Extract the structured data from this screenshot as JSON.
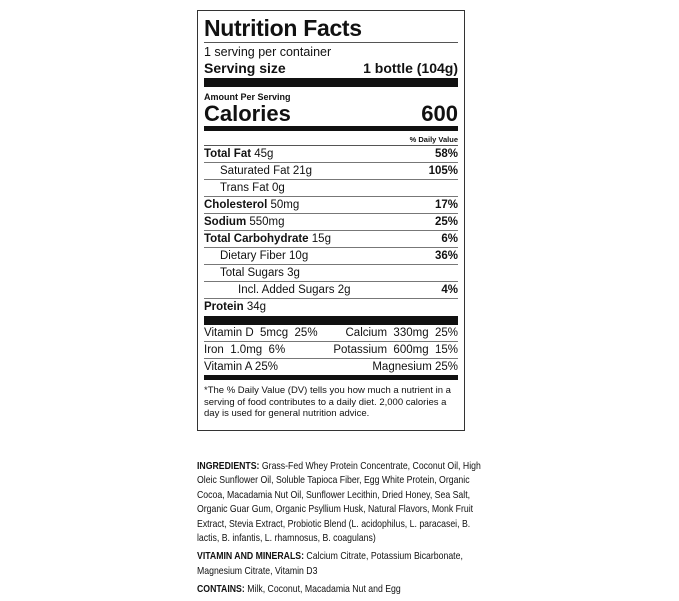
{
  "label": {
    "title": "Nutrition Facts",
    "servings": "1 serving per container",
    "serving_size_label": "Serving size",
    "serving_size_value": "1 bottle (104g)",
    "amount_per_serving": "Amount Per Serving",
    "calories_label": "Calories",
    "calories_value": "600",
    "daily_value_header": "% Daily Value",
    "nutrients": [
      {
        "name": "Total Fat",
        "amount": "45g",
        "dv": "58%",
        "bold": true,
        "indent": 0
      },
      {
        "name": "Saturated Fat",
        "amount": "21g",
        "dv": "105%",
        "bold": false,
        "indent": 1
      },
      {
        "name": "Trans Fat",
        "amount": "0g",
        "dv": "",
        "bold": false,
        "indent": 1
      },
      {
        "name": "Cholesterol",
        "amount": "50mg",
        "dv": "17%",
        "bold": true,
        "indent": 0
      },
      {
        "name": "Sodium",
        "amount": "550mg",
        "dv": "25%",
        "bold": true,
        "indent": 0
      },
      {
        "name": "Total Carbohydrate",
        "amount": "15g",
        "dv": "6%",
        "bold": true,
        "indent": 0
      },
      {
        "name": "Dietary Fiber",
        "amount": "10g",
        "dv": "36%",
        "bold": false,
        "indent": 1
      },
      {
        "name": "Total Sugars",
        "amount": "3g",
        "dv": "",
        "bold": false,
        "indent": 1
      },
      {
        "name": "Incl. Added Sugars",
        "amount": "2g",
        "dv": "4%",
        "bold": false,
        "indent": 2
      },
      {
        "name": "Protein",
        "amount": "34g",
        "dv": "",
        "bold": true,
        "indent": 0
      }
    ],
    "vitamins": [
      {
        "left": "Vitamin D  5mcg  25%",
        "right": "Calcium  330mg  25%"
      },
      {
        "left": "Iron  1.0mg  6%",
        "right": "Potassium  600mg  15%"
      },
      {
        "left": "Vitamin A 25%",
        "right": "Magnesium 25%"
      }
    ],
    "footnote": "*The % Daily Value (DV) tells you how much a nutrient in a serving of food contributes to a daily diet. 2,000 calories a day is used for general nutrition advice."
  },
  "ingredients": {
    "label": "INGREDIENTS:",
    "lines": [
      " Grass-Fed Whey Protein Concentrate, Coconut Oil, High",
      "Oleic Sunflower Oil, Soluble Tapioca Fiber, Egg White Protein, Organic",
      "Cocoa, Macadamia Nut Oil, Sunflower Lecithin, Dried Honey, Sea Salt,",
      "Organic Guar Gum, Organic Psyllium Husk, Natural Flavors, Monk Fruit",
      "Extract, Stevia Extract, Probiotic Blend (L. acidophilus, L. paracasei, B.",
      "lactis, B. infantis, L. rhamnosus, B. coagulans)"
    ]
  },
  "vitamins_minerals": {
    "label": "VITAMIN AND MINERALS:",
    "lines": [
      "  Calcium Citrate, Potassium Bicarbonate,",
      "Magnesium Citrate, Vitamin D3"
    ]
  },
  "contains": {
    "label": "CONTAINS:",
    "text": " Milk, Coconut, Macadamia Nut and Egg"
  }
}
